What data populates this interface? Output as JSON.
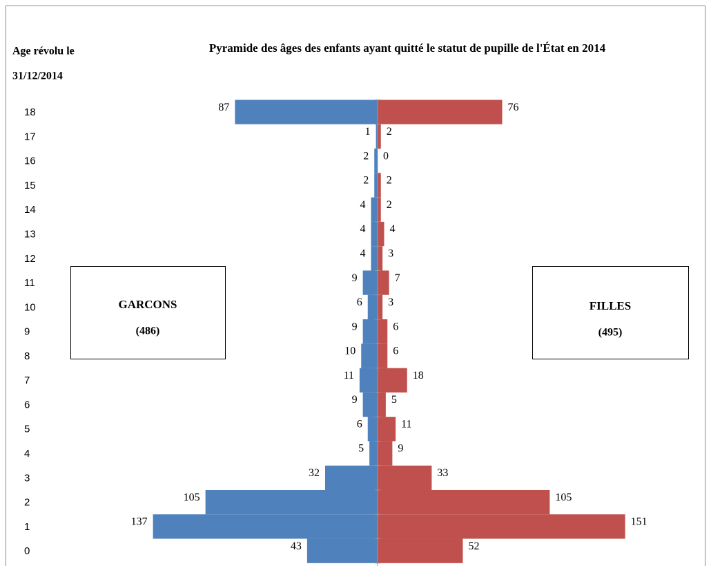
{
  "chart_data": {
    "type": "pyramid",
    "title": "Pyramide des âges des enfants ayant quitté le statut de pupille de l'État en 2014",
    "y_label": [
      "Age révolu le",
      "31/12/2014"
    ],
    "categories": [
      "18",
      "17",
      "16",
      "15",
      "14",
      "13",
      "12",
      "11",
      "10",
      "9",
      "8",
      "7",
      "6",
      "5",
      "4",
      "3",
      "2",
      "1",
      "0"
    ],
    "series": [
      {
        "name": "GARCONS",
        "total_label": "(486)",
        "side": "left",
        "color": "#4f81bd",
        "values": [
          87,
          1,
          2,
          2,
          4,
          4,
          4,
          9,
          6,
          9,
          10,
          11,
          9,
          6,
          5,
          32,
          105,
          137,
          43
        ]
      },
      {
        "name": "FILLES",
        "total_label": "(495)",
        "side": "right",
        "color": "#c0504d",
        "values": [
          76,
          2,
          0,
          2,
          2,
          4,
          3,
          7,
          3,
          6,
          6,
          18,
          5,
          11,
          9,
          33,
          105,
          151,
          52
        ]
      }
    ]
  }
}
